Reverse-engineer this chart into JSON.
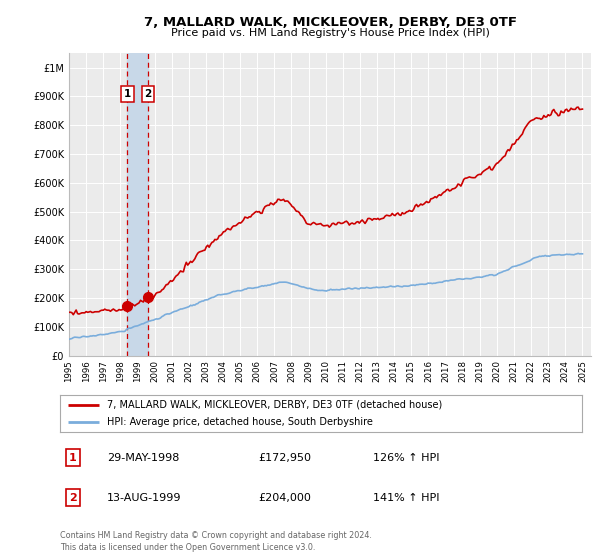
{
  "title": "7, MALLARD WALK, MICKLEOVER, DERBY, DE3 0TF",
  "subtitle": "Price paid vs. HM Land Registry's House Price Index (HPI)",
  "ylim": [
    0,
    1050000
  ],
  "xlim_start": 1995.0,
  "xlim_end": 2025.5,
  "background_color": "#ffffff",
  "plot_bg_color": "#ebebeb",
  "grid_color": "#ffffff",
  "red_line_color": "#cc0000",
  "blue_line_color": "#7aaddc",
  "sale1_x": 1998.41,
  "sale1_y": 172950,
  "sale2_x": 1999.62,
  "sale2_y": 204000,
  "sale1_label": "1",
  "sale2_label": "2",
  "sale1_date": "29-MAY-1998",
  "sale1_price": "£172,950",
  "sale1_hpi": "126% ↑ HPI",
  "sale2_date": "13-AUG-1999",
  "sale2_price": "£204,000",
  "sale2_hpi": "141% ↑ HPI",
  "legend_line1": "7, MALLARD WALK, MICKLEOVER, DERBY, DE3 0TF (detached house)",
  "legend_line2": "HPI: Average price, detached house, South Derbyshire",
  "footer1": "Contains HM Land Registry data © Crown copyright and database right 2024.",
  "footer2": "This data is licensed under the Open Government Licence v3.0.",
  "ytick_labels": [
    "£0",
    "£100K",
    "£200K",
    "£300K",
    "£400K",
    "£500K",
    "£600K",
    "£700K",
    "£800K",
    "£900K",
    "£1M"
  ],
  "ytick_values": [
    0,
    100000,
    200000,
    300000,
    400000,
    500000,
    600000,
    700000,
    800000,
    900000,
    1000000
  ],
  "span_color": "#c8d8e8",
  "vline_color": "#cc0000"
}
